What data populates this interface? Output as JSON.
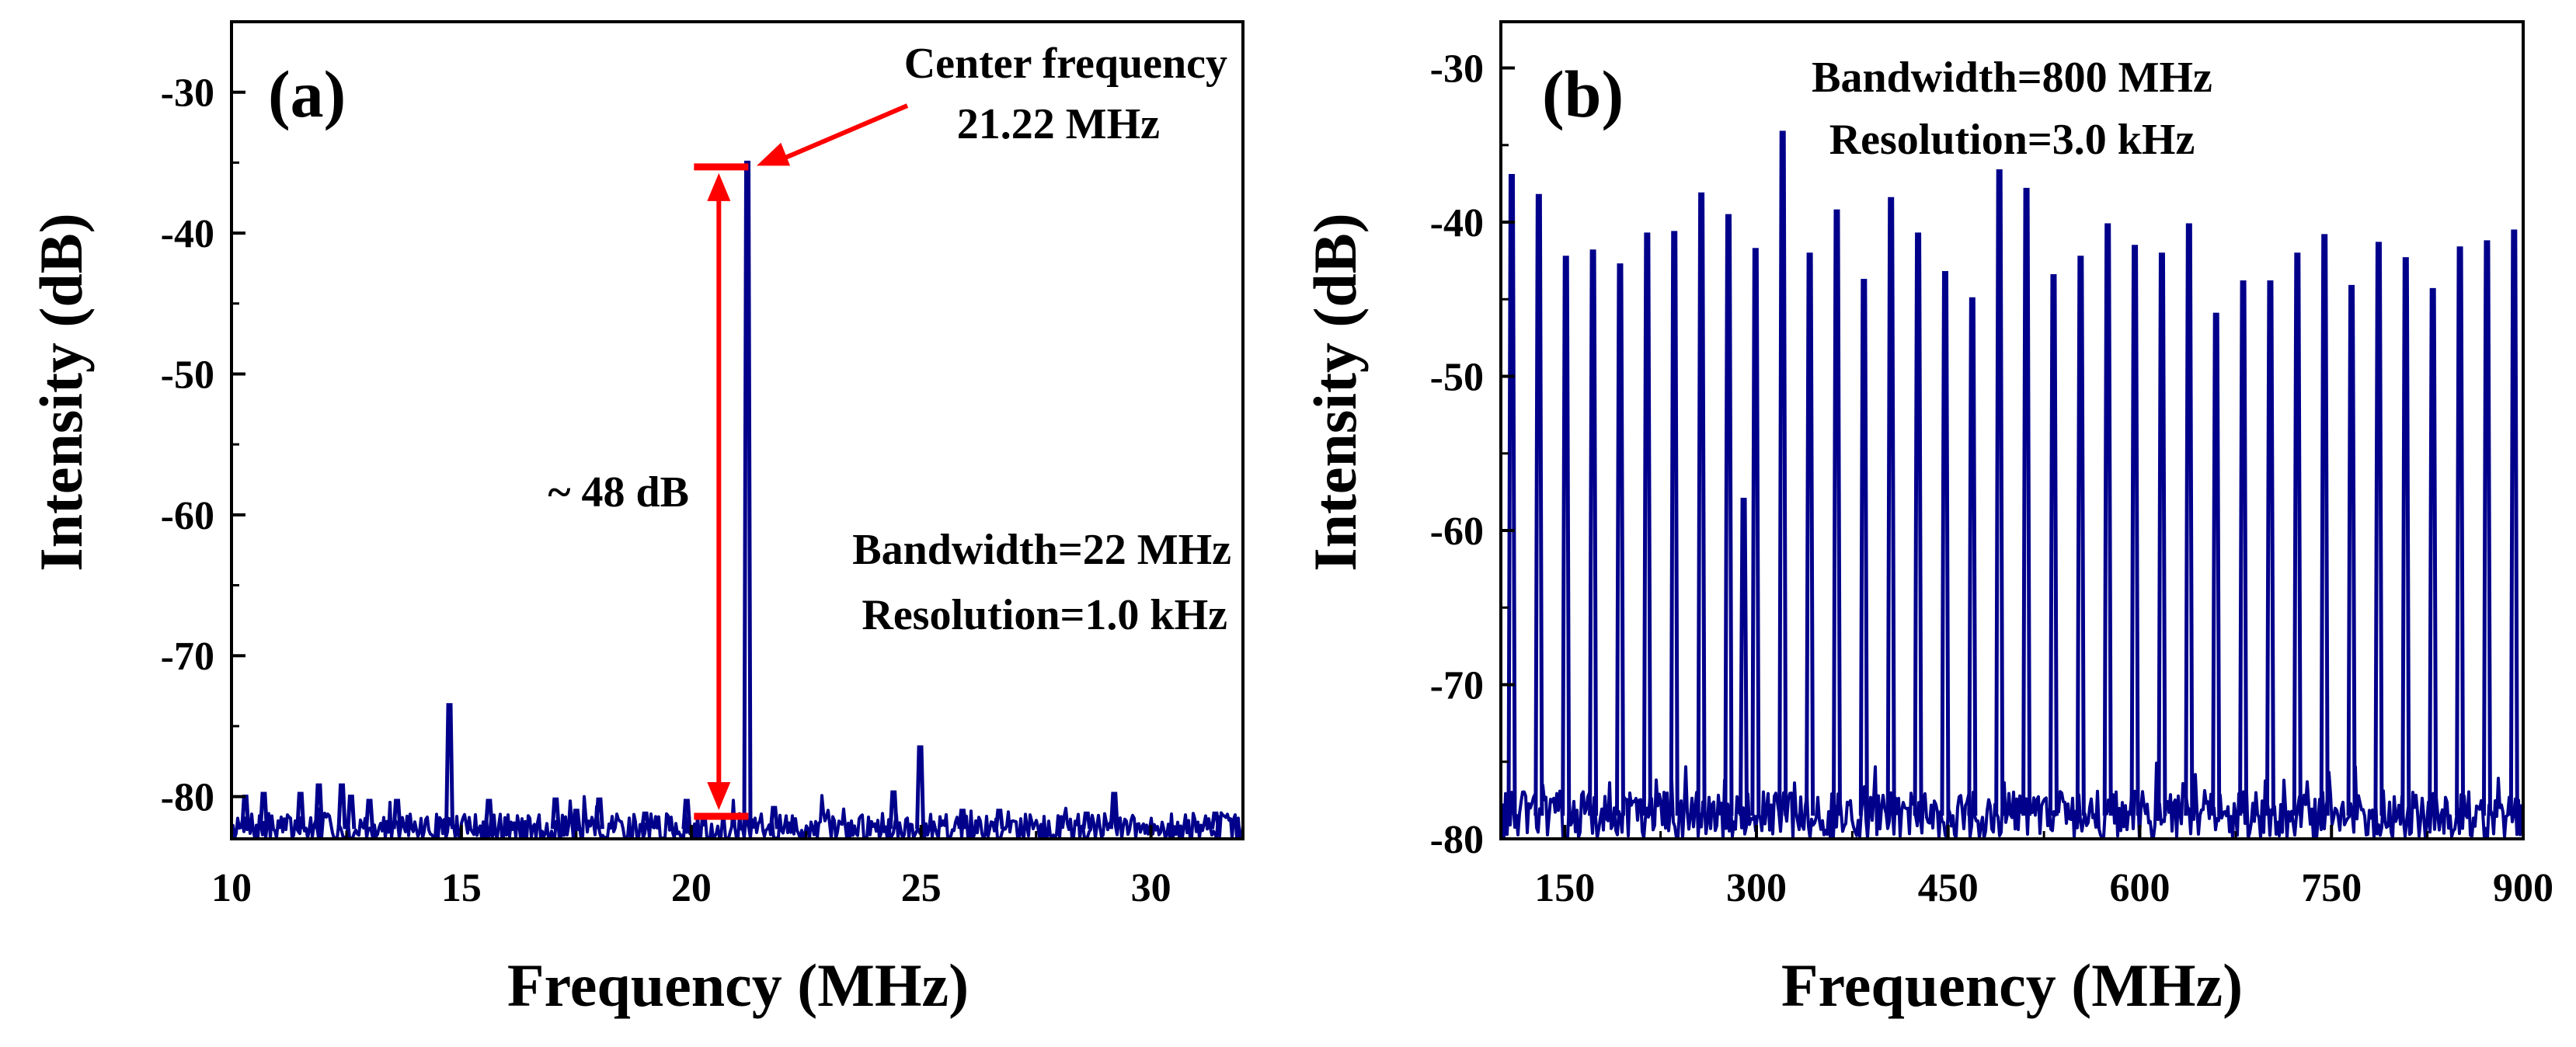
{
  "chart_data": [
    {
      "type": "line",
      "panel_label": "(a)",
      "xlabel": "Frequency (MHz)",
      "ylabel": "Intensity (dB)",
      "xlim": [
        10,
        32
      ],
      "ylim": [
        -83,
        -25
      ],
      "xticks": [
        10,
        15,
        20,
        25,
        30
      ],
      "xtick_labels": [
        "10",
        "15",
        "20",
        "25",
        "30"
      ],
      "yticks": [
        -30,
        -40,
        -50,
        -60,
        -70,
        -80
      ],
      "ytick_labels": [
        "-30",
        "-40",
        "-50",
        "-60",
        "-70",
        "-80"
      ],
      "series": [
        {
          "name": "spectrum",
          "color": "#00008b",
          "noise_floor": -82.3,
          "peaks": [
            {
              "x": 10.3,
              "y": -80.0
            },
            {
              "x": 10.7,
              "y": -79.8
            },
            {
              "x": 11.5,
              "y": -79.8
            },
            {
              "x": 11.9,
              "y": -79.2
            },
            {
              "x": 12.4,
              "y": -79.2
            },
            {
              "x": 12.6,
              "y": -80.0
            },
            {
              "x": 13.0,
              "y": -80.3
            },
            {
              "x": 13.6,
              "y": -80.3
            },
            {
              "x": 14.74,
              "y": -73.5
            },
            {
              "x": 15.6,
              "y": -80.3
            },
            {
              "x": 17.05,
              "y": -80.2
            },
            {
              "x": 17.5,
              "y": -81.0
            },
            {
              "x": 18.0,
              "y": -80.2
            },
            {
              "x": 19.0,
              "y": -81.2
            },
            {
              "x": 19.9,
              "y": -80.3
            },
            {
              "x": 21.22,
              "y": -35.0
            },
            {
              "x": 21.8,
              "y": -80.8
            },
            {
              "x": 24.4,
              "y": -79.7
            },
            {
              "x": 24.98,
              "y": -76.5
            },
            {
              "x": 25.9,
              "y": -81.0
            },
            {
              "x": 26.7,
              "y": -81.0
            },
            {
              "x": 28.6,
              "y": -81.2
            },
            {
              "x": 29.2,
              "y": -79.8
            },
            {
              "x": 31.4,
              "y": -81.2
            }
          ]
        }
      ],
      "annotations": {
        "center_title": "Center frequency",
        "center_value": "21.22 MHz",
        "dynamic_range": "~ 48 dB",
        "bandwidth": "Bandwidth=22 MHz",
        "resolution": "Resolution=1.0 kHz"
      },
      "marker": {
        "freq": 20.6,
        "top_db": -35.3,
        "bottom_db": -81.4,
        "color": "#ff0000"
      }
    },
    {
      "type": "line",
      "panel_label": "(b)",
      "xlabel": "Frequency (MHz)",
      "ylabel": "Intensity (dB)",
      "xlim": [
        100,
        900
      ],
      "ylim": [
        -80,
        -27
      ],
      "xticks": [
        150,
        300,
        450,
        600,
        750,
        900
      ],
      "xtick_labels": [
        "150",
        "300",
        "450",
        "600",
        "750",
        "900"
      ],
      "yticks": [
        -30,
        -40,
        -50,
        -60,
        -70,
        -80
      ],
      "ytick_labels": [
        "-30",
        "-40",
        "-50",
        "-60",
        "-70",
        "-80"
      ],
      "series": [
        {
          "name": "spectrum",
          "color": "#00008b",
          "noise_floor": -78.5,
          "peaks": [
            {
              "x": 108.5,
              "y": -37.0
            },
            {
              "x": 129.7,
              "y": -38.3
            },
            {
              "x": 150.9,
              "y": -42.3
            },
            {
              "x": 172.1,
              "y": -41.9
            },
            {
              "x": 193.3,
              "y": -42.8
            },
            {
              "x": 214.5,
              "y": -40.8
            },
            {
              "x": 235.7,
              "y": -40.7
            },
            {
              "x": 256.9,
              "y": -38.2
            },
            {
              "x": 278.1,
              "y": -39.6
            },
            {
              "x": 290.0,
              "y": -58.0
            },
            {
              "x": 299.3,
              "y": -41.8
            },
            {
              "x": 320.5,
              "y": -34.2
            },
            {
              "x": 341.7,
              "y": -42.1
            },
            {
              "x": 362.9,
              "y": -39.3
            },
            {
              "x": 384.1,
              "y": -43.8
            },
            {
              "x": 405.3,
              "y": -38.5
            },
            {
              "x": 426.5,
              "y": -40.8
            },
            {
              "x": 447.7,
              "y": -43.3
            },
            {
              "x": 468.9,
              "y": -45.0
            },
            {
              "x": 490.1,
              "y": -36.7
            },
            {
              "x": 511.3,
              "y": -37.9
            },
            {
              "x": 532.5,
              "y": -43.5
            },
            {
              "x": 553.7,
              "y": -42.3
            },
            {
              "x": 574.9,
              "y": -40.2
            },
            {
              "x": 596.1,
              "y": -41.6
            },
            {
              "x": 617.3,
              "y": -42.1
            },
            {
              "x": 638.5,
              "y": -40.2
            },
            {
              "x": 659.7,
              "y": -46.0
            },
            {
              "x": 680.9,
              "y": -43.9
            },
            {
              "x": 702.1,
              "y": -43.9
            },
            {
              "x": 723.3,
              "y": -42.1
            },
            {
              "x": 744.5,
              "y": -40.9
            },
            {
              "x": 765.7,
              "y": -44.2
            },
            {
              "x": 786.9,
              "y": -41.4
            },
            {
              "x": 808.1,
              "y": -42.4
            },
            {
              "x": 829.3,
              "y": -44.4
            },
            {
              "x": 850.5,
              "y": -41.7
            },
            {
              "x": 871.7,
              "y": -41.3
            },
            {
              "x": 892.9,
              "y": -40.6
            }
          ]
        }
      ],
      "annotations": {
        "bandwidth": "Bandwidth=800 MHz",
        "resolution": "Resolution=3.0 kHz"
      }
    }
  ]
}
